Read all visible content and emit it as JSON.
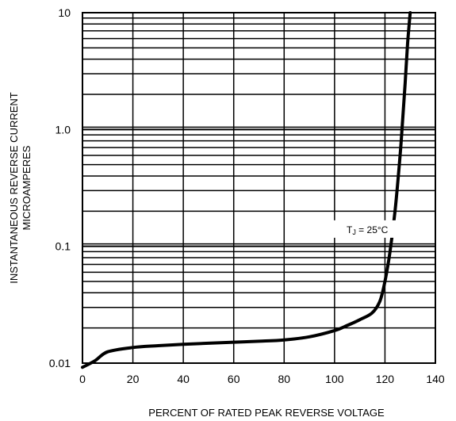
{
  "chart_data": {
    "type": "line",
    "title": "",
    "xlabel": "PERCENT OF RATED PEAK REVERSE VOLTAGE",
    "ylabel_lines": [
      "INSTANTANEOUS REVERSE CURRENT",
      "MICROAMPERES"
    ],
    "xlim": [
      0,
      140
    ],
    "ylim": [
      0.01,
      10
    ],
    "yscale": "log",
    "grid": true,
    "x_ticks": [
      0,
      20,
      40,
      60,
      80,
      100,
      120,
      140
    ],
    "x_tick_labels": [
      "0",
      "20",
      "40",
      "60",
      "80",
      "100",
      "120",
      "140"
    ],
    "y_ticks": [
      0.01,
      0.1,
      1.0,
      10
    ],
    "y_tick_labels": [
      "0.01",
      "0.1",
      "1.0",
      "10"
    ],
    "annotation": {
      "prefix": "T",
      "subscript": "J",
      "suffix": " = 25°C",
      "x": 113,
      "y": 0.13
    },
    "series": [
      {
        "x": [
          0,
          5,
          10,
          20,
          30,
          40,
          50,
          60,
          70,
          80,
          90,
          100,
          105,
          110,
          115,
          118,
          120,
          122,
          124,
          126,
          127,
          128,
          129,
          130
        ],
        "values": [
          0.0092,
          0.0105,
          0.0125,
          0.0136,
          0.0141,
          0.0145,
          0.0148,
          0.0151,
          0.0154,
          0.0158,
          0.0168,
          0.019,
          0.021,
          0.0235,
          0.027,
          0.034,
          0.05,
          0.09,
          0.2,
          0.6,
          1.2,
          2.5,
          5.5,
          10
        ]
      }
    ]
  }
}
